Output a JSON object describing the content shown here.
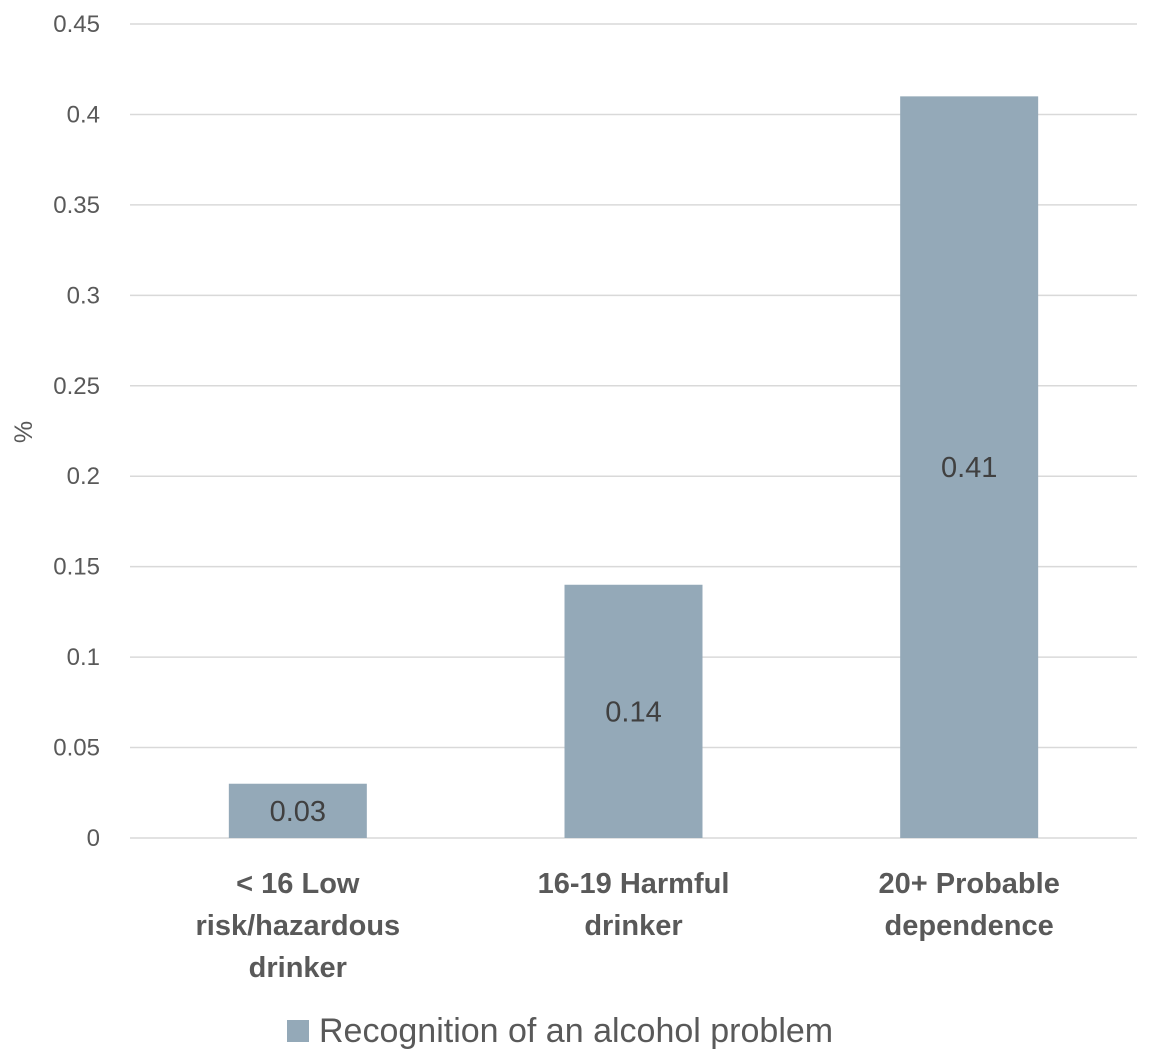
{
  "chart_data": {
    "type": "bar",
    "categories": [
      [
        "< 16 Low",
        "risk/hazardous",
        "drinker"
      ],
      [
        "16-19 Harmful",
        "drinker"
      ],
      [
        "20+ Probable",
        "dependence"
      ]
    ],
    "series": [
      {
        "name": "Recognition of an alcohol problem",
        "values": [
          0.03,
          0.14,
          0.41
        ],
        "color": "#94a9b8"
      }
    ],
    "data_labels": [
      "0.03",
      "0.14",
      "0.41"
    ],
    "ylabel": "%",
    "ylim": [
      0,
      0.45
    ],
    "yticks": [
      "0",
      "0.05",
      "0.1",
      "0.15",
      "0.2",
      "0.25",
      "0.3",
      "0.35",
      "0.4",
      "0.45"
    ],
    "ytick_values": [
      0,
      0.05,
      0.1,
      0.15,
      0.2,
      0.25,
      0.3,
      0.35,
      0.4,
      0.45
    ],
    "grid": true,
    "legend_position": "bottom"
  }
}
